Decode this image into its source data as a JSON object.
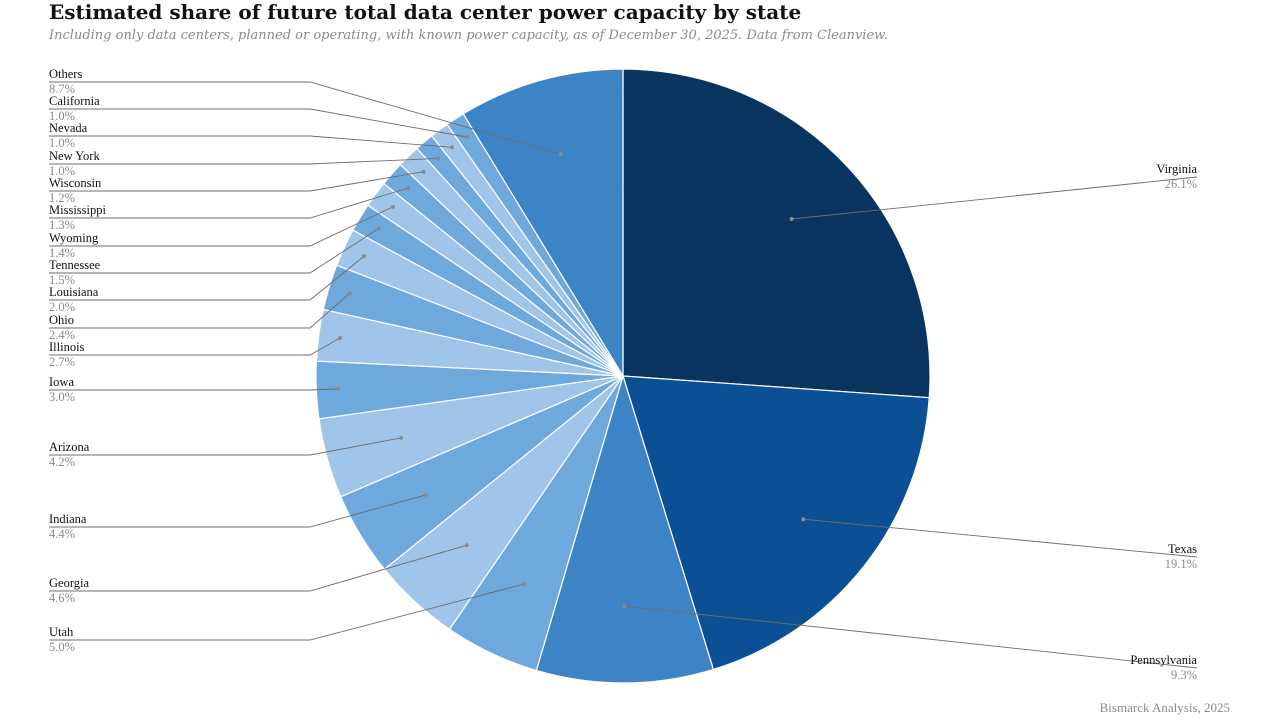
{
  "title": "Estimated share of future total data center power capacity by state",
  "subtitle": "Including only data centers, planned or operating, with known power capacity, as of December 30, 2025. Data from Cleanview.",
  "credit": "Bismarck Analysis, 2025",
  "chart_data": {
    "type": "pie",
    "title": "Estimated share of future total data center power capacity by state",
    "subtitle": "Including only data centers, planned or operating, with known power capacity, as of December 30, 2025. Data from Cleanview.",
    "unit": "%",
    "slices": [
      {
        "label": "Virginia",
        "value": 26.1,
        "display": "26.1%",
        "color": "#08345f"
      },
      {
        "label": "Texas",
        "value": 19.1,
        "display": "19.1%",
        "color": "#0b5094"
      },
      {
        "label": "Pennsylvania",
        "value": 9.3,
        "display": "9.3%",
        "color": "#3d84c6"
      },
      {
        "label": "Utah",
        "value": 5.0,
        "display": "5.0%",
        "color": "#6ea8dc"
      },
      {
        "label": "Georgia",
        "value": 4.6,
        "display": "4.6%",
        "color": "#9fc6ea"
      },
      {
        "label": "Indiana",
        "value": 4.4,
        "display": "4.4%",
        "color": "#6ea8dc"
      },
      {
        "label": "Arizona",
        "value": 4.2,
        "display": "4.2%",
        "color": "#9fc6ea"
      },
      {
        "label": "Iowa",
        "value": 3.0,
        "display": "3.0%",
        "color": "#6ea8dc"
      },
      {
        "label": "Illinois",
        "value": 2.7,
        "display": "2.7%",
        "color": "#9fc6ea"
      },
      {
        "label": "Ohio",
        "value": 2.4,
        "display": "2.4%",
        "color": "#6ea8dc"
      },
      {
        "label": "Louisiana",
        "value": 2.0,
        "display": "2.0%",
        "color": "#9fc6ea"
      },
      {
        "label": "Tennessee",
        "value": 1.5,
        "display": "1.5%",
        "color": "#6ea8dc"
      },
      {
        "label": "Wyoming",
        "value": 1.4,
        "display": "1.4%",
        "color": "#9fc6ea"
      },
      {
        "label": "Mississippi",
        "value": 1.3,
        "display": "1.3%",
        "color": "#6ea8dc"
      },
      {
        "label": "Wisconsin",
        "value": 1.2,
        "display": "1.2%",
        "color": "#9fc6ea"
      },
      {
        "label": "New York",
        "value": 1.0,
        "display": "1.0%",
        "color": "#6ea8dc"
      },
      {
        "label": "Nevada",
        "value": 1.0,
        "display": "1.0%",
        "color": "#9fc6ea"
      },
      {
        "label": "California",
        "value": 1.0,
        "display": "1.0%",
        "color": "#6ea8dc"
      },
      {
        "label": "Others",
        "value": 8.7,
        "display": "8.7%",
        "color": "#3d84c6"
      }
    ]
  }
}
